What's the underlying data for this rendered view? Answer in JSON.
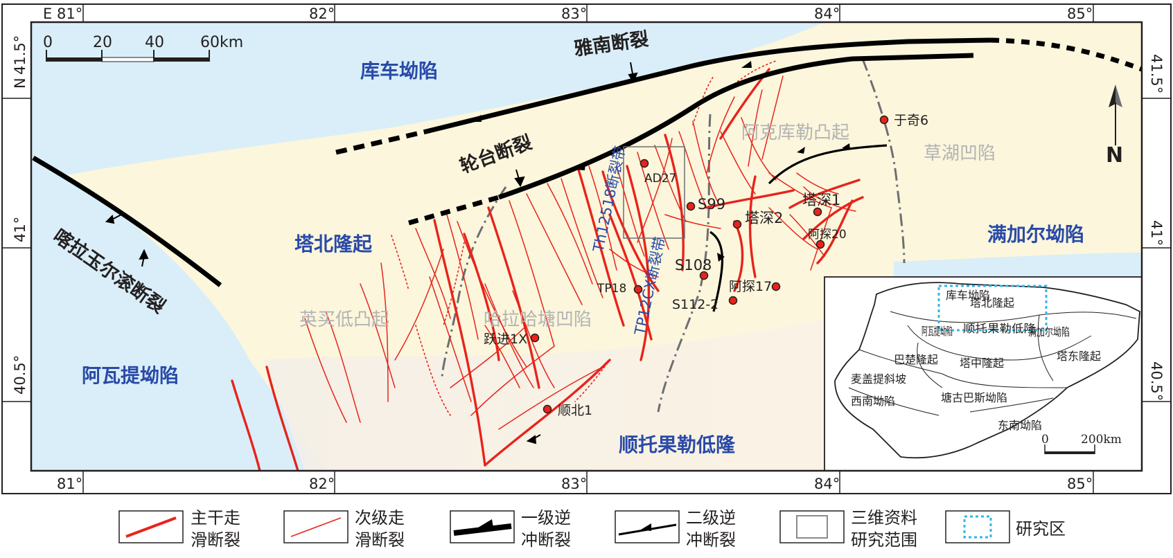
{
  "map": {
    "frame": {
      "lon_top": [
        "81°",
        "82°",
        "83°",
        "84°",
        "85°"
      ],
      "lon_top_prefix": "E",
      "lon_bottom": [
        "81°",
        "82°",
        "83°",
        "84°",
        "85°"
      ],
      "lat_left": [
        "41.5°",
        "41°",
        "40.5°"
      ],
      "lat_left_prefix": "N",
      "lat_right": [
        "41.5°",
        "41°",
        "40.5°"
      ]
    },
    "scale_bar": {
      "ticks": [
        "0",
        "20",
        "40",
        "60km"
      ]
    },
    "north_arrow": {
      "label": "N"
    },
    "regions": {
      "kuche": "库车坳陷",
      "tabei": "塔北隆起",
      "awati": "阿瓦提坳陷",
      "manjiaer": "满加尔坳陷",
      "shuntuo": "顺托果勒低隆",
      "yingmai": "英买低凸起",
      "halahatang": "哈拉哈塘凹陷",
      "akekule": "阿克库勒凸起",
      "caohu": "草湖凹陷"
    },
    "faults": {
      "yanan": "雅南断裂",
      "luntai": "轮台断裂",
      "kalayu": "喀拉玉尔滚断裂",
      "th12518": "Th12518断裂带",
      "tp12cx": "TP12CX断裂带"
    },
    "wells": [
      {
        "name": "于奇6"
      },
      {
        "name": "AD27"
      },
      {
        "name": "S99"
      },
      {
        "name": "塔深2"
      },
      {
        "name": "塔深1"
      },
      {
        "name": "阿探20"
      },
      {
        "name": "S108"
      },
      {
        "name": "TP18"
      },
      {
        "name": "阿探17"
      },
      {
        "name": "S112-2"
      },
      {
        "name": "跃进1X"
      },
      {
        "name": "顺北1"
      }
    ]
  },
  "inset": {
    "labels": {
      "kuche": "库车坳陷",
      "tabei": "塔北隆起",
      "awati": "阿瓦提坳陷",
      "manjiaer": "满加尔坳陷",
      "shuntuo": "顺托果勒低隆",
      "bachu": "巴楚隆起",
      "tazhong": "塔中隆起",
      "tadong": "塔东隆起",
      "maigaiti": "麦盖提斜坡",
      "tanggu": "塘古巴斯坳陷",
      "xinan": "西南坳陷",
      "dongnan": "东南坳陷"
    },
    "scale": {
      "zero": "0",
      "end": "200km"
    }
  },
  "legend": [
    {
      "key": "main",
      "line1": "主干走",
      "line2": "滑断裂"
    },
    {
      "key": "second",
      "line1": "次级走",
      "line2": "滑断裂"
    },
    {
      "key": "thrust1",
      "line1": "一级逆",
      "line2": "冲断裂"
    },
    {
      "key": "thrust2",
      "line1": "二级逆",
      "line2": "冲断裂"
    },
    {
      "key": "seismic",
      "line1": "三维资料",
      "line2": "研究范围"
    },
    {
      "key": "study",
      "line1": "研究区",
      "line2": ""
    }
  ],
  "colors": {
    "basin": "#d9eef8",
    "uplift": "#fbf6dc",
    "lowrise": "#fbf1e6",
    "fault_red": "#e8231b",
    "thrust_black": "#000000",
    "label_blue": "#2a4aa8",
    "label_gray": "#b3b3b3",
    "study_blue": "#31b6e6"
  }
}
